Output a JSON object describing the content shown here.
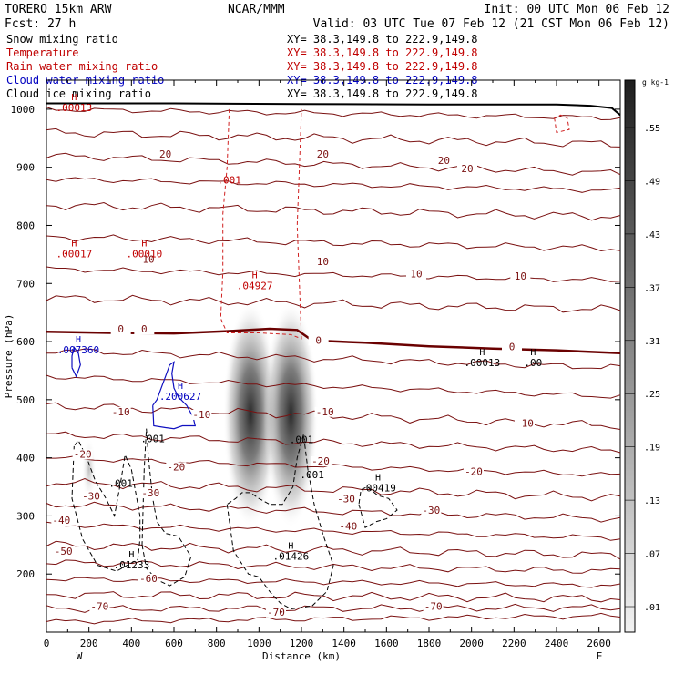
{
  "header": {
    "model": "TORERO   15km ARW",
    "org": "NCAR/MMM",
    "init": "Init: 00 UTC Mon 06 Feb 12",
    "fcst": "Fcst:    27 h",
    "valid": "Valid: 03 UTC Tue 07 Feb 12 (21 CST Mon 06 Feb 12)"
  },
  "fields": [
    {
      "name": "Snow mixing ratio",
      "xy": "XY=  38.3,149.8 to 222.9,149.8",
      "color": "#000000"
    },
    {
      "name": "Temperature",
      "xy": "XY=  38.3,149.8 to 222.9,149.8",
      "color": "#c00000"
    },
    {
      "name": "Rain water mixing ratio",
      "xy": "XY=  38.3,149.8 to 222.9,149.8",
      "color": "#c00000"
    },
    {
      "name": "Cloud water mixing ratio",
      "xy": "XY=  38.3,149.8 to 222.9,149.8",
      "color": "#0000c0"
    },
    {
      "name": "Cloud ice mixing ratio",
      "xy": "XY=  38.3,149.8 to 222.9,149.8",
      "color": "#000000"
    }
  ],
  "chart_data": {
    "type": "cross-section contour",
    "xlabel": "Distance (km)",
    "ylabel": "Pressure (hPa)",
    "xlim": [
      0,
      2700
    ],
    "ylim": [
      1050,
      100
    ],
    "x_ticks": [
      0,
      200,
      400,
      600,
      800,
      1000,
      1200,
      1400,
      1600,
      1800,
      2000,
      2200,
      2400,
      2600
    ],
    "y_ticks": [
      200,
      300,
      400,
      500,
      600,
      700,
      800,
      900,
      1000
    ],
    "x_end_labels": {
      "left": "W",
      "right": "E"
    },
    "colorbar": {
      "units": "g kg-1",
      "labels": [
        ".01",
        ".07",
        ".13",
        ".19",
        ".25",
        ".31",
        ".37",
        ".43",
        ".49",
        ".55"
      ]
    },
    "temperature_labels": [
      {
        "t": "-70",
        "x": 250,
        "p": 140
      },
      {
        "t": "-70",
        "x": 1080,
        "p": 130
      },
      {
        "t": "-70",
        "x": 1820,
        "p": 140
      },
      {
        "t": "-60",
        "x": 480,
        "p": 188
      },
      {
        "t": "-50",
        "x": 80,
        "p": 235
      },
      {
        "t": "-40",
        "x": 70,
        "p": 288
      },
      {
        "t": "-40",
        "x": 1420,
        "p": 278
      },
      {
        "t": "-30",
        "x": 210,
        "p": 330
      },
      {
        "t": "-30",
        "x": 490,
        "p": 335
      },
      {
        "t": "-30",
        "x": 1410,
        "p": 325
      },
      {
        "t": "-30",
        "x": 1810,
        "p": 305
      },
      {
        "t": "-20",
        "x": 170,
        "p": 402
      },
      {
        "t": "-20",
        "x": 610,
        "p": 380
      },
      {
        "t": "-20",
        "x": 1290,
        "p": 390
      },
      {
        "t": "-20",
        "x": 2010,
        "p": 372
      },
      {
        "t": "-10",
        "x": 350,
        "p": 475
      },
      {
        "t": "-10",
        "x": 730,
        "p": 470
      },
      {
        "t": "-10",
        "x": 1310,
        "p": 475
      },
      {
        "t": "-10",
        "x": 2250,
        "p": 455
      },
      {
        "t": "0",
        "x": 350,
        "p": 617
      },
      {
        "t": "0",
        "x": 460,
        "p": 617
      },
      {
        "t": "0",
        "x": 1280,
        "p": 598
      },
      {
        "t": "0",
        "x": 2190,
        "p": 587
      },
      {
        "t": "10",
        "x": 480,
        "p": 737
      },
      {
        "t": "10",
        "x": 1300,
        "p": 733
      },
      {
        "t": "10",
        "x": 1740,
        "p": 712
      },
      {
        "t": "10",
        "x": 2230,
        "p": 708
      },
      {
        "t": "20",
        "x": 560,
        "p": 918
      },
      {
        "t": "20",
        "x": 1300,
        "p": 918
      },
      {
        "t": "20",
        "x": 1870,
        "p": 907
      },
      {
        "t": "20",
        "x": 1980,
        "p": 893
      }
    ],
    "maxima": [
      {
        "label": ".01233",
        "x": 400,
        "p": 210,
        "field": "Cloud ice mixing ratio"
      },
      {
        "label": ".01426",
        "x": 1150,
        "p": 225,
        "field": "Cloud ice mixing ratio"
      },
      {
        "label": ".00419",
        "x": 1560,
        "p": 342,
        "field": "Cloud ice mixing ratio"
      },
      {
        "label": ".00013",
        "x": 2050,
        "p": 558,
        "field": "Cloud ice mixing ratio"
      },
      {
        "label": ".00",
        "x": 2290,
        "p": 558,
        "field": "Cloud ice mixing ratio"
      },
      {
        "label": ".200627",
        "x": 630,
        "p": 500,
        "field": "Cloud water mixing ratio"
      },
      {
        "label": ".007360",
        "x": 150,
        "p": 580,
        "field": "Cloud water mixing ratio"
      },
      {
        "label": ".04927",
        "x": 980,
        "p": 690,
        "field": "Rain water mixing ratio"
      },
      {
        "label": ".00017",
        "x": 130,
        "p": 745,
        "field": "Rain water mixing ratio"
      },
      {
        "label": ".00010",
        "x": 460,
        "p": 745,
        "field": "Rain water mixing ratio"
      },
      {
        "label": ".00013",
        "x": 130,
        "p": 997,
        "field": "Rain water mixing ratio"
      }
    ],
    "contour_labels": [
      {
        "t": ".001",
        "x": 350,
        "p": 350,
        "field": "Cloud ice mixing ratio"
      },
      {
        "t": ".001",
        "x": 500,
        "p": 427,
        "field": "Cloud ice mixing ratio"
      },
      {
        "t": ".001",
        "x": 1250,
        "p": 365,
        "field": "Cloud ice mixing ratio"
      },
      {
        "t": ".001",
        "x": 1200,
        "p": 425,
        "field": "Cloud ice mixing ratio"
      },
      {
        "t": ".001",
        "x": 860,
        "p": 872,
        "field": "Rain water mixing ratio"
      }
    ],
    "snow_maxima_km": [
      960,
      1150
    ]
  }
}
